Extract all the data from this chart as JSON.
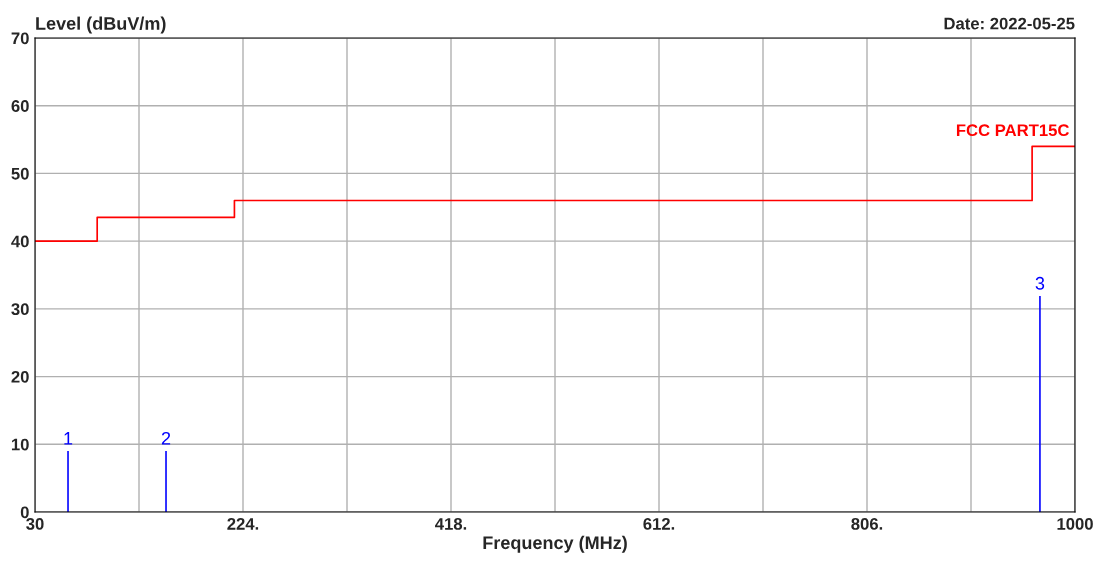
{
  "chart_data": {
    "type": "step",
    "xlabel": "Frequency (MHz)",
    "ylabel": "Level (dBuV/m)",
    "annotations": [
      "Date: 2022-05-25",
      {
        "text": "1",
        "x": 60.8,
        "y": 9
      },
      {
        "text": "2",
        "x": 152.2,
        "y": 9
      },
      {
        "text": "3",
        "x": 967.3,
        "y": 31.9
      }
    ],
    "series": [
      {
        "name": "FCC PART15C",
        "color": "#ff0000",
        "x": [
          30,
          88,
          216,
          960,
          1000
        ],
        "values": [
          40,
          43.5,
          46,
          54,
          54
        ]
      },
      {
        "type": "bar",
        "color": "#0000ff",
        "x": [
          60.8,
          152.2,
          967.3
        ],
        "values": [
          9,
          9,
          31.9
        ]
      }
    ],
    "xlim": [
      30,
      1000
    ],
    "ylim": [
      0,
      70
    ],
    "xticks": [
      30,
      {
        "value": 127,
        "label": null
      },
      {
        "value": 224,
        "label": "224."
      },
      {
        "value": 321,
        "label": null
      },
      {
        "value": 418,
        "label": "418."
      },
      {
        "value": 515,
        "label": null
      },
      {
        "value": 612,
        "label": "612."
      },
      {
        "value": 709,
        "label": null
      },
      {
        "value": 806,
        "label": "806."
      },
      {
        "value": 903,
        "label": null
      },
      1000
    ],
    "yticks": [
      0,
      10,
      20,
      30,
      40,
      50,
      60,
      70
    ],
    "grid": true,
    "legend": false
  }
}
